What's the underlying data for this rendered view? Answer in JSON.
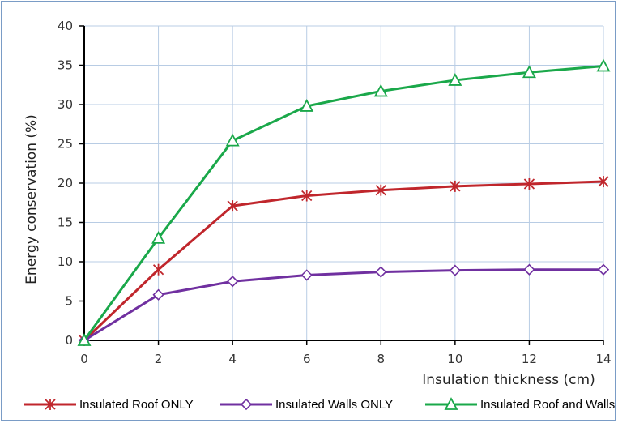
{
  "chart_data": {
    "type": "line",
    "xlabel": "Insulation thickness (cm)",
    "ylabel": "Energy conservation  (%)",
    "x": [
      0,
      2,
      4,
      6,
      8,
      10,
      12,
      14
    ],
    "xlim": [
      0,
      14
    ],
    "ylim": [
      0,
      40
    ],
    "xticks": [
      0,
      2,
      4,
      6,
      8,
      10,
      12,
      14
    ],
    "yticks": [
      0,
      5,
      10,
      15,
      20,
      25,
      30,
      35,
      40
    ],
    "grid": true,
    "legend_position": "bottom",
    "series": [
      {
        "name": "Insulated Roof ONLY",
        "color": "#c0262c",
        "marker": "star",
        "values": [
          0,
          9.0,
          17.1,
          18.4,
          19.1,
          19.6,
          19.9,
          20.2
        ]
      },
      {
        "name": "Insulated Walls ONLY",
        "color": "#7030a0",
        "marker": "diamond",
        "values": [
          0,
          5.8,
          7.5,
          8.3,
          8.7,
          8.9,
          9.0,
          9.0
        ]
      },
      {
        "name": "Insulated Roof and Walls",
        "color": "#1aa84a",
        "marker": "triangle",
        "values": [
          0,
          13.0,
          25.4,
          29.8,
          31.7,
          33.1,
          34.1,
          34.9
        ]
      }
    ]
  }
}
